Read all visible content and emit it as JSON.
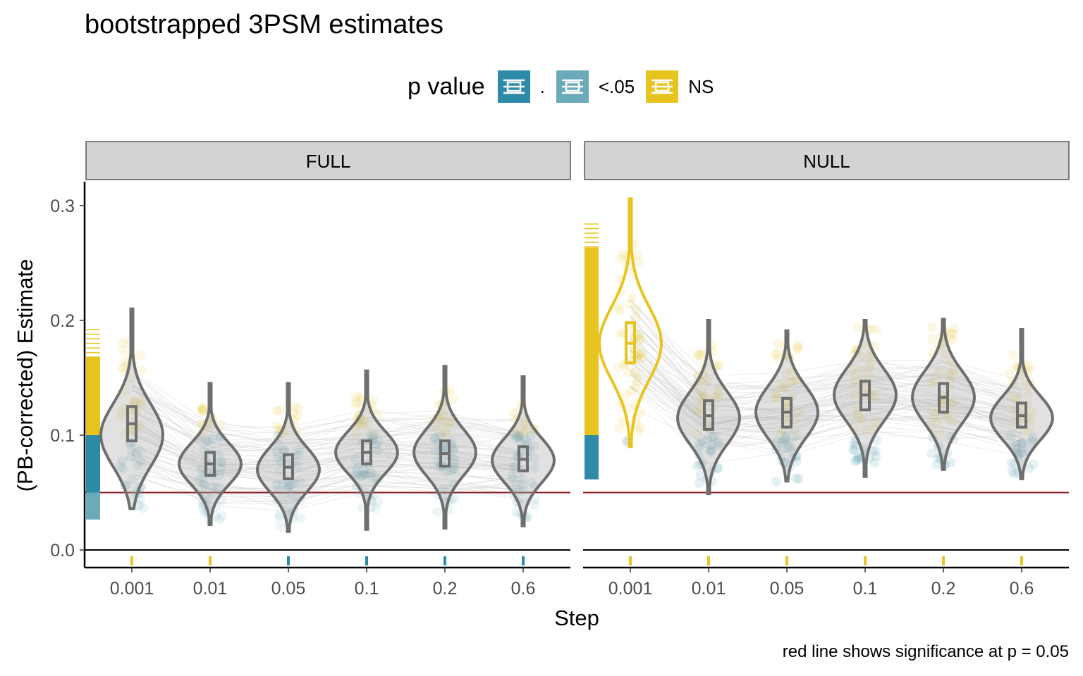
{
  "title": "bootstrapped 3PSM estimates",
  "caption": "red line shows significance at p = 0.05",
  "legend": {
    "title": "p value",
    "items": [
      {
        "label": ".",
        "color": "#2E8BA8"
      },
      {
        "label": "<.05",
        "color": "#6BAAB9"
      },
      {
        "label": "NS",
        "color": "#E8C420"
      }
    ]
  },
  "colors": {
    "sig_dot": "#2E8BA8",
    "sig_05": "#6BAAB9",
    "ns": "#E8C420",
    "violin": "#6E6E6E",
    "lines": "#C8C8C8",
    "threshold": "#8B1A1A",
    "strip_fill": "#D3D3D3"
  },
  "chart_data": {
    "type": "violin",
    "xlabel": "Step",
    "ylabel": "(PB-corrected) Estimate",
    "categories": [
      "0.001",
      "0.01",
      "0.05",
      "0.1",
      "0.2",
      "0.6"
    ],
    "yticks": [
      "0.0",
      "0.1",
      "0.2",
      "0.3"
    ],
    "ylim": [
      -0.015,
      0.32
    ],
    "threshold": 0.05,
    "panels": [
      {
        "name": "FULL",
        "steps": [
          {
            "step": "0.001",
            "median": 0.11,
            "q1": 0.095,
            "q3": 0.125,
            "min": 0.036,
            "max": 0.21,
            "mode": 0.1,
            "class": "NS"
          },
          {
            "step": "0.01",
            "median": 0.075,
            "q1": 0.065,
            "q3": 0.085,
            "min": 0.022,
            "max": 0.145,
            "mode": 0.075,
            "class": "NS"
          },
          {
            "step": "0.05",
            "median": 0.072,
            "q1": 0.062,
            "q3": 0.083,
            "min": 0.016,
            "max": 0.145,
            "mode": 0.07,
            "class": "."
          },
          {
            "step": "0.1",
            "median": 0.085,
            "q1": 0.075,
            "q3": 0.095,
            "min": 0.018,
            "max": 0.156,
            "mode": 0.085,
            "class": "."
          },
          {
            "step": "0.2",
            "median": 0.084,
            "q1": 0.073,
            "q3": 0.095,
            "min": 0.019,
            "max": 0.16,
            "mode": 0.085,
            "class": "."
          },
          {
            "step": "0.6",
            "median": 0.079,
            "q1": 0.069,
            "q3": 0.09,
            "min": 0.021,
            "max": 0.151,
            "mode": 0.078,
            "class": "."
          }
        ],
        "rug": {
          "ns": [
            0.1,
            0.193
          ],
          "sig_dot": [
            0.05,
            0.1
          ],
          "sig_05": [
            0.027,
            0.05
          ]
        }
      },
      {
        "name": "NULL",
        "steps": [
          {
            "step": "0.001",
            "median": 0.18,
            "q1": 0.163,
            "q3": 0.198,
            "min": 0.09,
            "max": 0.306,
            "mode": 0.18,
            "class": "NS"
          },
          {
            "step": "0.01",
            "median": 0.117,
            "q1": 0.105,
            "q3": 0.13,
            "min": 0.049,
            "max": 0.2,
            "mode": 0.115,
            "class": "NS"
          },
          {
            "step": "0.05",
            "median": 0.12,
            "q1": 0.107,
            "q3": 0.132,
            "min": 0.06,
            "max": 0.191,
            "mode": 0.12,
            "class": "NS"
          },
          {
            "step": "0.1",
            "median": 0.135,
            "q1": 0.122,
            "q3": 0.147,
            "min": 0.064,
            "max": 0.2,
            "mode": 0.135,
            "class": "NS"
          },
          {
            "step": "0.2",
            "median": 0.133,
            "q1": 0.12,
            "q3": 0.145,
            "min": 0.07,
            "max": 0.201,
            "mode": 0.133,
            "class": "NS"
          },
          {
            "step": "0.6",
            "median": 0.117,
            "q1": 0.107,
            "q3": 0.128,
            "min": 0.062,
            "max": 0.192,
            "mode": 0.115,
            "class": "NS"
          }
        ],
        "rug": {
          "ns": [
            0.1,
            0.288
          ],
          "sig_dot": [
            0.062,
            0.1
          ],
          "sig_05": []
        }
      }
    ]
  }
}
